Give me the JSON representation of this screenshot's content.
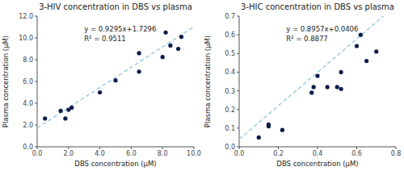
{
  "chart_data": [
    {
      "type": "scatter",
      "title": "3-HIV concentration in DBS vs plasma",
      "x_label": "DBS concentration (μM)",
      "y_label": "Plasma concentration (μM)",
      "series": [
        {
          "type": "scatter",
          "color": "#0d1b4b",
          "x": [
            0.5,
            1.5,
            1.8,
            2.0,
            2.2,
            4.0,
            5.0,
            6.5,
            6.5,
            8.0,
            8.2,
            8.5,
            9.0,
            9.2
          ],
          "values": [
            2.6,
            3.3,
            2.6,
            3.4,
            3.6,
            5.0,
            6.1,
            6.9,
            8.6,
            8.25,
            10.5,
            9.3,
            9.0,
            10.1
          ]
        },
        {
          "type": "line",
          "color": "#90c8e0",
          "line_style": "dashed",
          "slope": 0.9295,
          "intercept": 1.7296
        }
      ],
      "annotations": [
        "y = 0.9295x+1.7296",
        "R² = 0.9511"
      ],
      "xlim": [
        0,
        10
      ],
      "ylim": [
        0,
        12
      ],
      "xticks": [
        {
          "value": 0,
          "label": "0.0"
        },
        {
          "value": 2,
          "label": "2.0"
        },
        {
          "value": 4,
          "label": "4.0"
        },
        {
          "value": 6,
          "label": "6.0"
        },
        {
          "value": 8,
          "label": "8.0"
        },
        {
          "value": 10,
          "label": "10.0"
        }
      ],
      "yticks": [
        {
          "value": 0,
          "label": "0.0"
        },
        {
          "value": 2,
          "label": "2.0"
        },
        {
          "value": 4,
          "label": "4.0"
        },
        {
          "value": 6,
          "label": "6.0"
        },
        {
          "value": 8,
          "label": "8.0"
        },
        {
          "value": 10,
          "label": "10.0"
        },
        {
          "value": 12,
          "label": "12.0"
        }
      ],
      "grid": false
    },
    {
      "type": "scatter",
      "title": "3-HIC concentration in DBS vs plasma",
      "x_label": "DBS concentration (μM)",
      "y_label": "Plasma concentration (μM)",
      "series": [
        {
          "type": "scatter",
          "color": "#0d1b4b",
          "x": [
            0.1,
            0.15,
            0.15,
            0.22,
            0.37,
            0.38,
            0.4,
            0.45,
            0.5,
            0.52,
            0.52,
            0.6,
            0.62,
            0.65,
            0.7
          ],
          "values": [
            0.05,
            0.12,
            0.11,
            0.09,
            0.29,
            0.32,
            0.38,
            0.32,
            0.32,
            0.31,
            0.4,
            0.54,
            0.6,
            0.46,
            0.51
          ]
        },
        {
          "type": "line",
          "color": "#90c8e0",
          "line_style": "dashed",
          "slope": 0.8957,
          "intercept": 0.0406
        }
      ],
      "annotations": [
        "y = 0.8957x+0.0406",
        "R² = 0.8877"
      ],
      "xlim": [
        0,
        0.8
      ],
      "ylim": [
        0,
        0.7
      ],
      "xticks": [
        {
          "value": 0,
          "label": "0.0"
        },
        0.2,
        0.4,
        0.6,
        0.8
      ],
      "yticks": [
        {
          "value": 0,
          "label": "0.0"
        },
        0.1,
        0.2,
        0.3,
        0.4,
        0.5,
        0.6,
        0.7
      ],
      "grid": false
    }
  ]
}
